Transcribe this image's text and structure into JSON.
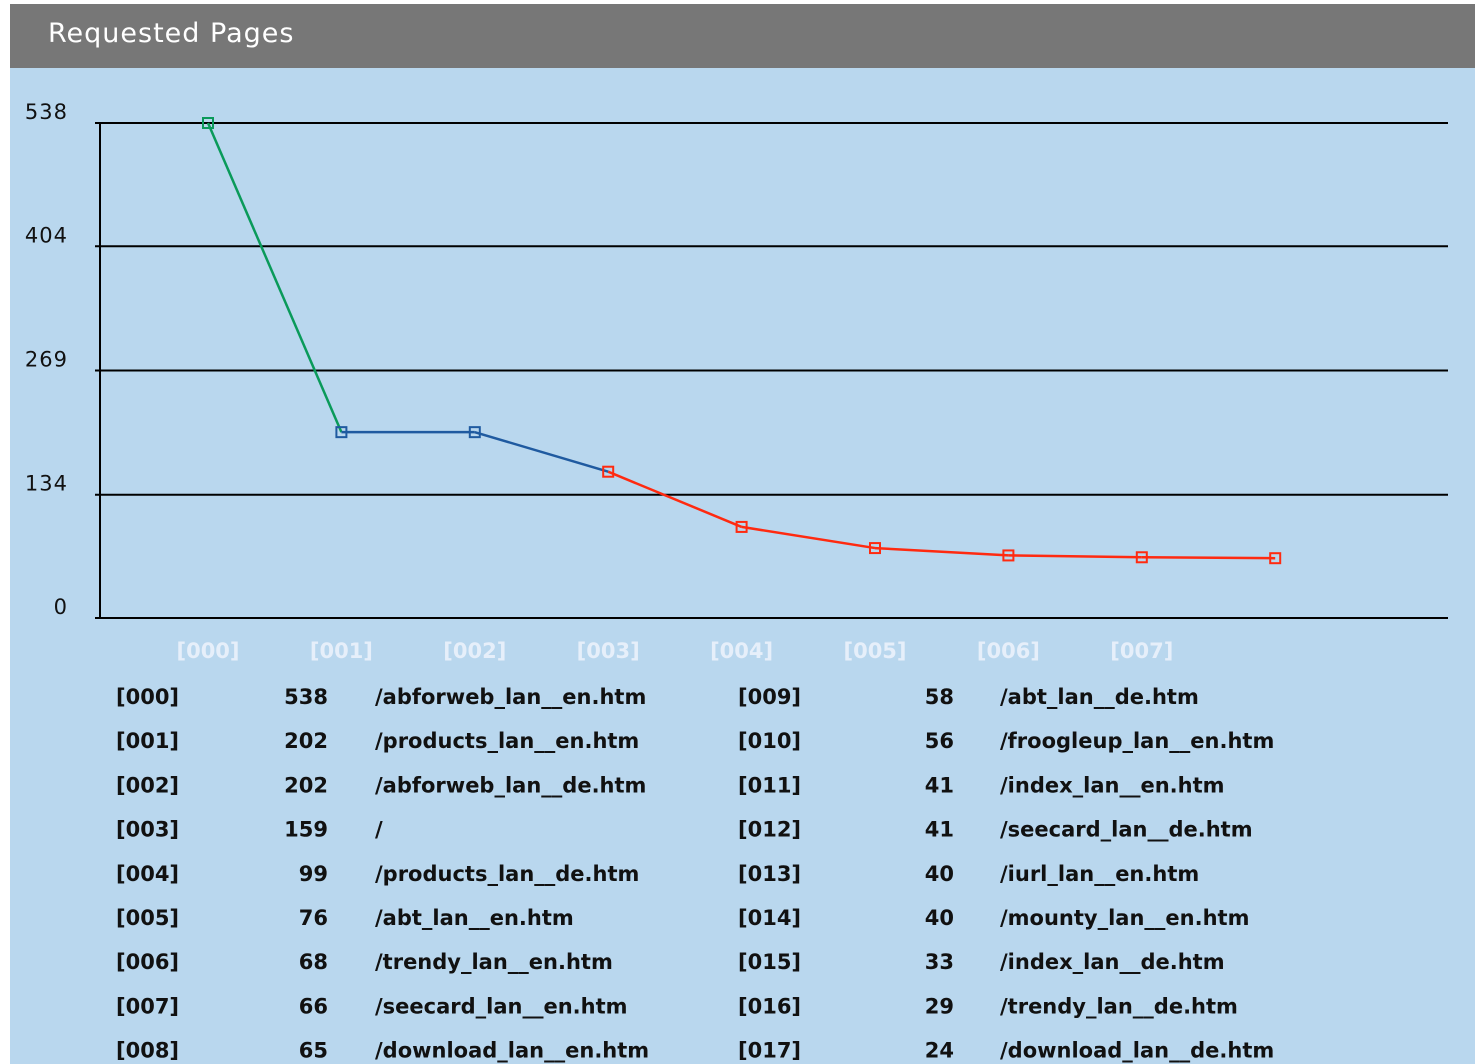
{
  "header": {
    "title": "Requested Pages"
  },
  "chart_data": {
    "type": "line",
    "categories": [
      "[000]",
      "[001]",
      "[002]",
      "[003]",
      "[004]",
      "[005]",
      "[006]",
      "[007]",
      null
    ],
    "values": [
      538,
      202,
      202,
      159,
      99,
      76,
      68,
      66,
      65
    ],
    "point_colors": [
      "#0a9a5a",
      "#1f5aa0",
      "#1f5aa0",
      "#ff2a10",
      "#ff2a10",
      "#ff2a10",
      "#ff2a10",
      "#ff2a10",
      "#ff2a10"
    ],
    "ylim": [
      0,
      538
    ],
    "yticks": [
      0,
      134,
      269,
      404,
      538
    ],
    "grid": true
  },
  "table": {
    "rows": [
      [
        "[000]",
        538,
        "/abforweb_lan__en.htm"
      ],
      [
        "[001]",
        202,
        "/products_lan__en.htm"
      ],
      [
        "[002]",
        202,
        "/abforweb_lan__de.htm"
      ],
      [
        "[003]",
        159,
        "/"
      ],
      [
        "[004]",
        99,
        "/products_lan__de.htm"
      ],
      [
        "[005]",
        76,
        "/abt_lan__en.htm"
      ],
      [
        "[006]",
        68,
        "/trendy_lan__en.htm"
      ],
      [
        "[007]",
        66,
        "/seecard_lan__en.htm"
      ],
      [
        "[008]",
        65,
        "/download_lan__en.htm"
      ],
      [
        "[009]",
        58,
        "/abt_lan__de.htm"
      ],
      [
        "[010]",
        56,
        "/froogleup_lan__en.htm"
      ],
      [
        "[011]",
        41,
        "/index_lan__en.htm"
      ],
      [
        "[012]",
        41,
        "/seecard_lan__de.htm"
      ],
      [
        "[013]",
        40,
        "/iurl_lan__en.htm"
      ],
      [
        "[014]",
        40,
        "/mounty_lan__en.htm"
      ],
      [
        "[015]",
        33,
        "/index_lan__de.htm"
      ],
      [
        "[016]",
        29,
        "/trendy_lan__de.htm"
      ],
      [
        "[017]",
        24,
        "/download_lan__de.htm"
      ]
    ]
  }
}
